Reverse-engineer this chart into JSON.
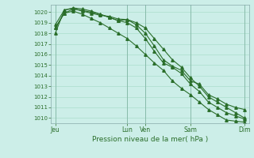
{
  "xlabel": "Pression niveau de la mer( hPa )",
  "bg_color": "#cceee8",
  "grid_color": "#aaddcc",
  "line_color": "#2a6e2a",
  "ylim": [
    1009.5,
    1020.7
  ],
  "yticks": [
    1010,
    1011,
    1012,
    1013,
    1014,
    1015,
    1016,
    1017,
    1018,
    1019,
    1020
  ],
  "xtick_labels": [
    "Jeu",
    "Lun",
    "Ven",
    "Sam",
    "Dim"
  ],
  "xtick_positions": [
    0,
    8,
    10,
    15,
    21
  ],
  "total_points": 22,
  "series1": [
    1018.0,
    1020.2,
    1020.4,
    1020.3,
    1020.1,
    1019.8,
    1019.5,
    1019.2,
    1019.3,
    1019.0,
    1018.5,
    1017.5,
    1016.5,
    1015.5,
    1014.8,
    1013.8,
    1013.0,
    1012.0,
    1011.5,
    1011.0,
    1010.5,
    1010.0
  ],
  "series2": [
    1018.8,
    1020.2,
    1020.35,
    1020.1,
    1019.9,
    1019.7,
    1019.6,
    1019.35,
    1019.3,
    1018.8,
    1018.0,
    1016.8,
    1015.5,
    1014.9,
    1014.5,
    1013.5,
    1013.2,
    1012.2,
    1011.8,
    1011.3,
    1011.0,
    1010.8
  ],
  "series3": [
    1018.5,
    1019.9,
    1020.3,
    1020.15,
    1020.0,
    1019.8,
    1019.5,
    1019.2,
    1019.0,
    1018.5,
    1017.5,
    1016.3,
    1015.2,
    1014.8,
    1014.2,
    1013.2,
    1012.5,
    1011.5,
    1011.0,
    1010.5,
    1010.2,
    1009.9
  ],
  "series4": [
    1018.5,
    1019.9,
    1020.1,
    1019.8,
    1019.4,
    1019.0,
    1018.5,
    1018.0,
    1017.5,
    1016.8,
    1016.0,
    1015.2,
    1014.5,
    1013.5,
    1012.8,
    1012.2,
    1011.5,
    1010.8,
    1010.3,
    1009.8,
    1009.7,
    1009.6
  ]
}
